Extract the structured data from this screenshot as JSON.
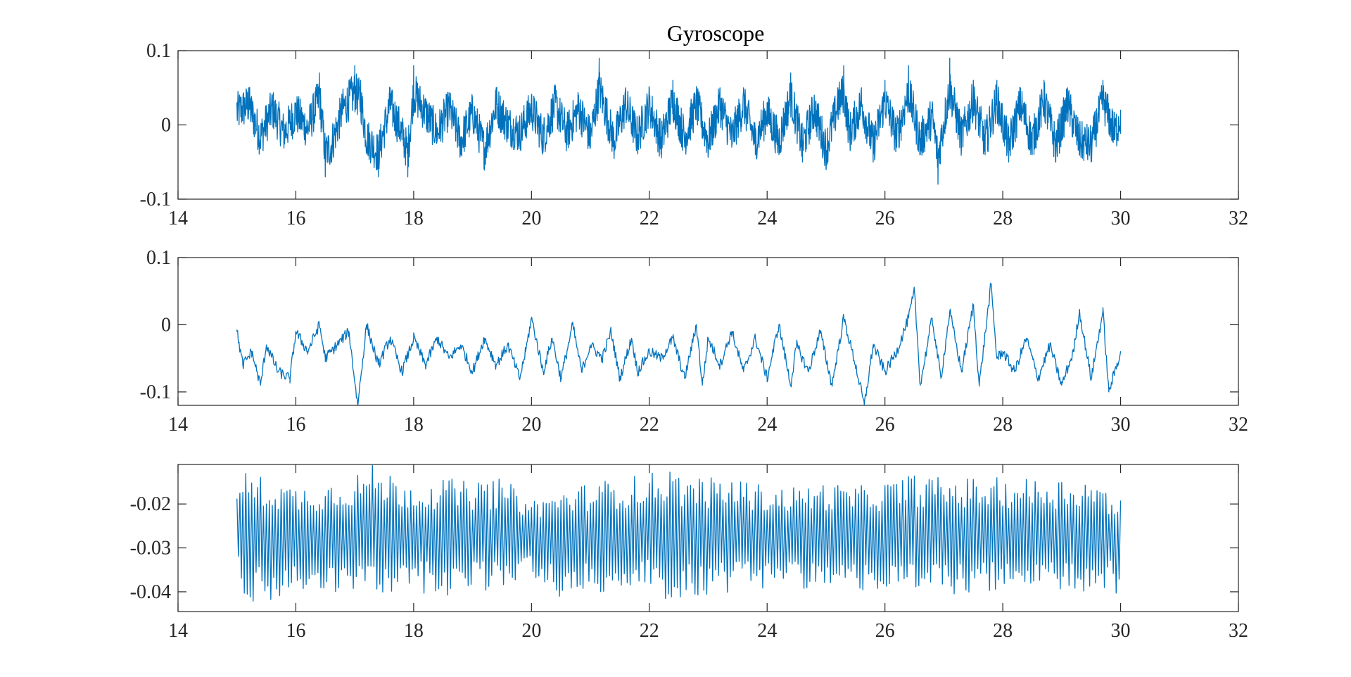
{
  "figure": {
    "title": "Gyroscope",
    "line_color": "#0072BD"
  },
  "chart_data": [
    {
      "type": "line",
      "title": "Gyroscope",
      "xlabel": "",
      "ylabel": "",
      "xlim": [
        14,
        32
      ],
      "ylim": [
        -0.1,
        0.1
      ],
      "xticks": [
        14,
        16,
        18,
        20,
        22,
        24,
        26,
        28,
        30,
        32
      ],
      "xtick_labels": [
        "14",
        "16",
        "18",
        "20",
        "22",
        "24",
        "26",
        "28",
        "30",
        "32"
      ],
      "yticks": [
        -0.1,
        0,
        0.1
      ],
      "ytick_labels": [
        "-0.1",
        "0",
        "0.1"
      ],
      "grid": false,
      "series": [
        {
          "x_range": [
            15,
            30
          ],
          "x": [
            15.0,
            15.2,
            15.4,
            15.6,
            15.8,
            16.0,
            16.2,
            16.4,
            16.5,
            16.6,
            16.8,
            17.0,
            17.1,
            17.2,
            17.4,
            17.6,
            17.8,
            17.9,
            18.0,
            18.2,
            18.4,
            18.6,
            18.8,
            19.0,
            19.2,
            19.4,
            19.6,
            19.8,
            20.0,
            20.2,
            20.4,
            20.6,
            20.8,
            21.0,
            21.15,
            21.4,
            21.6,
            21.8,
            22.0,
            22.2,
            22.4,
            22.6,
            22.8,
            23.0,
            23.2,
            23.4,
            23.6,
            23.8,
            24.0,
            24.2,
            24.4,
            24.6,
            24.8,
            25.0,
            25.2,
            25.3,
            25.4,
            25.6,
            25.8,
            26.0,
            26.2,
            26.4,
            26.6,
            26.8,
            26.9,
            27.1,
            27.3,
            27.5,
            27.7,
            27.9,
            28.1,
            28.3,
            28.5,
            28.7,
            28.9,
            29.1,
            29.3,
            29.5,
            29.7,
            29.9,
            30.0
          ],
          "values": [
            0.03,
            0.05,
            -0.03,
            0.04,
            -0.02,
            0.03,
            -0.01,
            0.07,
            -0.07,
            -0.05,
            0.04,
            0.08,
            0.06,
            -0.03,
            -0.07,
            0.05,
            -0.02,
            -0.07,
            0.08,
            0.03,
            -0.02,
            0.04,
            -0.04,
            0.03,
            -0.06,
            0.05,
            0.0,
            -0.02,
            0.04,
            -0.03,
            0.05,
            -0.02,
            0.04,
            -0.03,
            0.09,
            -0.04,
            0.05,
            -0.03,
            0.05,
            -0.04,
            0.06,
            -0.03,
            0.05,
            -0.04,
            0.05,
            -0.03,
            0.05,
            -0.04,
            0.03,
            -0.04,
            0.07,
            -0.05,
            0.04,
            -0.06,
            0.05,
            0.08,
            -0.02,
            0.05,
            -0.05,
            0.06,
            -0.03,
            0.08,
            -0.04,
            0.02,
            -0.08,
            0.09,
            -0.03,
            0.06,
            -0.04,
            0.06,
            -0.05,
            0.05,
            -0.04,
            0.06,
            -0.05,
            0.05,
            -0.04,
            -0.05,
            0.06,
            -0.02,
            0.02
          ]
        }
      ]
    },
    {
      "type": "line",
      "title": "",
      "xlabel": "",
      "ylabel": "",
      "xlim": [
        14,
        32
      ],
      "ylim": [
        -0.12,
        0.1
      ],
      "xticks": [
        14,
        16,
        18,
        20,
        22,
        24,
        26,
        28,
        30,
        32
      ],
      "xtick_labels": [
        "14",
        "16",
        "18",
        "20",
        "22",
        "24",
        "26",
        "28",
        "30",
        "32"
      ],
      "yticks": [
        -0.1,
        0,
        0.1
      ],
      "ytick_labels": [
        "-0.1",
        "0",
        "0.1"
      ],
      "grid": false,
      "series": [
        {
          "x": [
            15.0,
            15.1,
            15.25,
            15.4,
            15.5,
            15.7,
            15.9,
            16.0,
            16.2,
            16.4,
            16.5,
            16.7,
            16.9,
            17.05,
            17.2,
            17.4,
            17.6,
            17.8,
            18.0,
            18.2,
            18.4,
            18.6,
            18.8,
            19.0,
            19.2,
            19.4,
            19.6,
            19.8,
            19.9,
            20.0,
            20.2,
            20.35,
            20.5,
            20.7,
            20.85,
            21.0,
            21.2,
            21.35,
            21.5,
            21.7,
            21.8,
            22.0,
            22.2,
            22.4,
            22.6,
            22.8,
            22.9,
            23.0,
            23.2,
            23.4,
            23.6,
            23.8,
            24.0,
            24.2,
            24.4,
            24.5,
            24.7,
            24.9,
            25.1,
            25.3,
            25.5,
            25.65,
            25.8,
            26.0,
            26.2,
            26.4,
            26.5,
            26.6,
            26.8,
            26.95,
            27.1,
            27.3,
            27.5,
            27.6,
            27.8,
            27.9,
            28.0,
            28.2,
            28.4,
            28.6,
            28.8,
            29.0,
            29.2,
            29.3,
            29.5,
            29.7,
            29.8,
            30.0
          ],
          "values": [
            -0.01,
            -0.06,
            -0.04,
            -0.09,
            -0.03,
            -0.07,
            -0.08,
            -0.01,
            -0.04,
            0.0,
            -0.05,
            -0.03,
            -0.01,
            -0.12,
            0.0,
            -0.06,
            -0.02,
            -0.07,
            -0.02,
            -0.06,
            -0.02,
            -0.05,
            -0.03,
            -0.07,
            -0.02,
            -0.06,
            -0.03,
            -0.08,
            -0.04,
            0.01,
            -0.07,
            -0.02,
            -0.08,
            0.0,
            -0.07,
            -0.03,
            -0.05,
            -0.01,
            -0.08,
            -0.02,
            -0.07,
            -0.04,
            -0.05,
            -0.02,
            -0.08,
            0.0,
            -0.09,
            -0.02,
            -0.06,
            -0.01,
            -0.07,
            -0.02,
            -0.08,
            0.0,
            -0.09,
            -0.03,
            -0.07,
            -0.01,
            -0.09,
            0.01,
            -0.06,
            -0.12,
            -0.03,
            -0.07,
            -0.04,
            0.01,
            0.05,
            -0.09,
            0.01,
            -0.08,
            0.02,
            -0.07,
            0.03,
            -0.09,
            0.06,
            -0.05,
            -0.04,
            -0.07,
            -0.02,
            -0.08,
            -0.03,
            -0.09,
            -0.04,
            0.02,
            -0.08,
            0.02,
            -0.1,
            -0.04
          ]
        }
      ]
    },
    {
      "type": "line",
      "title": "",
      "xlabel": "",
      "ylabel": "",
      "xlim": [
        14,
        32
      ],
      "ylim": [
        -0.0445,
        -0.011
      ],
      "xticks": [
        14,
        16,
        18,
        20,
        22,
        24,
        26,
        28,
        30,
        32
      ],
      "xtick_labels": [
        "14",
        "16",
        "18",
        "20",
        "22",
        "24",
        "26",
        "28",
        "30",
        "32"
      ],
      "yticks": [
        -0.04,
        -0.03,
        -0.02
      ],
      "ytick_labels": [
        "-0.04",
        "-0.03",
        "-0.02"
      ],
      "grid": false,
      "series": [
        {
          "x_range": [
            15,
            30
          ],
          "oscillation_period": 0.05,
          "center": -0.027,
          "envelope_x": [
            15.0,
            15.05,
            15.5,
            16.0,
            16.5,
            17.0,
            17.3,
            18.0,
            18.5,
            19.0,
            19.5,
            20.0,
            20.5,
            21.0,
            21.5,
            22.0,
            22.3,
            22.5,
            23.0,
            23.5,
            24.0,
            24.5,
            25.0,
            25.5,
            26.0,
            26.5,
            27.0,
            27.5,
            28.0,
            28.5,
            29.0,
            29.5,
            29.9,
            30.0
          ],
          "envelope_max": [
            -0.018,
            -0.012,
            -0.014,
            -0.016,
            -0.015,
            -0.013,
            -0.011,
            -0.015,
            -0.014,
            -0.015,
            -0.014,
            -0.019,
            -0.017,
            -0.015,
            -0.014,
            -0.013,
            -0.011,
            -0.013,
            -0.014,
            -0.014,
            -0.016,
            -0.016,
            -0.015,
            -0.016,
            -0.015,
            -0.013,
            -0.014,
            -0.014,
            -0.014,
            -0.014,
            -0.014,
            -0.014,
            -0.018,
            -0.019
          ],
          "envelope_min": [
            -0.025,
            -0.044,
            -0.043,
            -0.041,
            -0.04,
            -0.041,
            -0.041,
            -0.04,
            -0.041,
            -0.04,
            -0.04,
            -0.036,
            -0.043,
            -0.04,
            -0.041,
            -0.039,
            -0.042,
            -0.042,
            -0.041,
            -0.04,
            -0.039,
            -0.039,
            -0.04,
            -0.04,
            -0.04,
            -0.041,
            -0.041,
            -0.04,
            -0.041,
            -0.04,
            -0.041,
            -0.04,
            -0.04,
            -0.044
          ]
        }
      ]
    }
  ]
}
